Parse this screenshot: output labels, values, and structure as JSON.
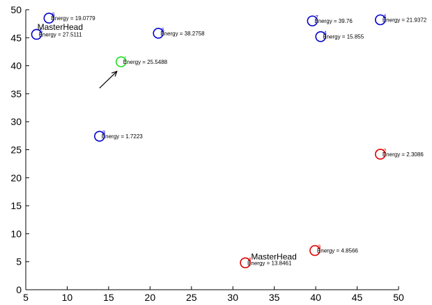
{
  "chart_data": {
    "type": "scatter",
    "title": "",
    "xlabel": "",
    "ylabel": "",
    "xlim": [
      5,
      50
    ],
    "ylim": [
      0,
      50
    ],
    "xticks": [
      5,
      10,
      15,
      20,
      25,
      30,
      35,
      40,
      45,
      50
    ],
    "yticks": [
      0,
      5,
      10,
      15,
      20,
      25,
      30,
      35,
      40,
      45,
      50
    ],
    "grid": false,
    "colors": {
      "blue": "#0000cc",
      "red": "#dd0000",
      "green": "#22dd22",
      "axis": "#000000"
    },
    "points": [
      {
        "id": "6",
        "x": 7.8,
        "y": 48.5,
        "color": "blue",
        "label": "Energy = 19.0779"
      },
      {
        "id": "5",
        "x": 6.3,
        "y": 45.6,
        "color": "blue",
        "label": "Energy = 27.5111"
      },
      {
        "id": "6",
        "x": 21.0,
        "y": 45.8,
        "color": "blue",
        "label": "Energy = 38.2758"
      },
      {
        "id": "7",
        "x": 39.6,
        "y": 48.0,
        "color": "blue",
        "label": "Energy = 39.76"
      },
      {
        "id": "4",
        "x": 40.6,
        "y": 45.2,
        "color": "blue",
        "label": "Energy = 15.855"
      },
      {
        "id": "4",
        "x": 47.8,
        "y": 48.2,
        "color": "blue",
        "label": "Energy = 21.9372"
      },
      {
        "id": "3",
        "x": 13.9,
        "y": 27.4,
        "color": "blue",
        "label": "Energy = 1.7223"
      },
      {
        "id": "1",
        "x": 16.5,
        "y": 40.7,
        "color": "green",
        "label": "Energy = 25.5488"
      },
      {
        "id": "2",
        "x": 47.8,
        "y": 24.2,
        "color": "red",
        "label": "Energy = 2.3086"
      },
      {
        "id": "3",
        "x": 39.9,
        "y": 7.0,
        "color": "red",
        "label": "Energy = 4.8566"
      },
      {
        "id": "4",
        "x": 31.5,
        "y": 4.8,
        "color": "red",
        "label": "Energy = 13.8461"
      }
    ],
    "annotations": [
      {
        "text": "MasterHead",
        "x": 6.4,
        "y": 46.4
      },
      {
        "text": "MasterHead",
        "x": 32.2,
        "y": 5.4
      }
    ],
    "arrow": {
      "from": [
        13.9,
        36.0
      ],
      "to": [
        16.0,
        39.0
      ]
    }
  }
}
